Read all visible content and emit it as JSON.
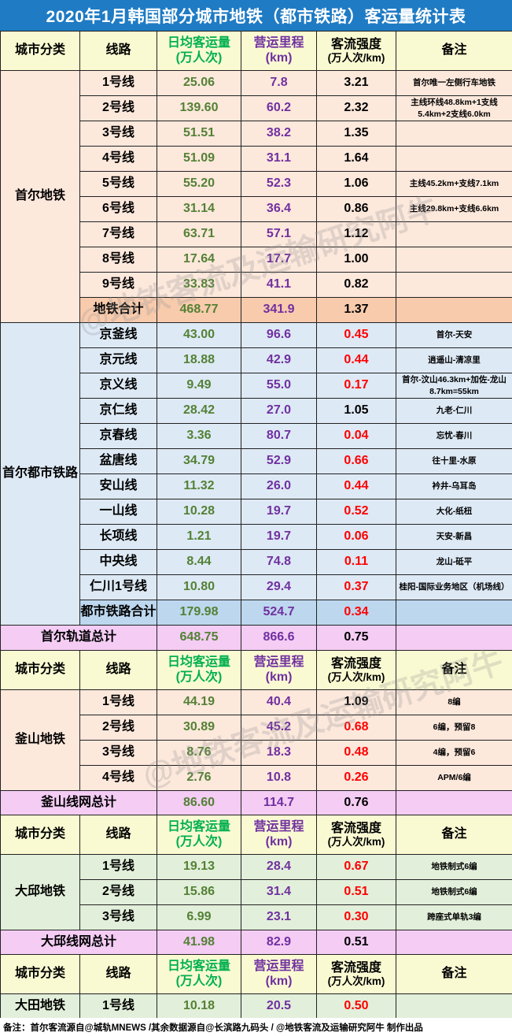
{
  "title": "2020年1月韩国部分城市地铁（都市铁路）客运量统计表",
  "headers": {
    "city": "城市分类",
    "line": "线路",
    "ridership_1": "日均客运量",
    "ridership_2": "(万人次)",
    "length_1": "营运里程",
    "length_2": "(km)",
    "intensity_1": "客流强度",
    "intensity_2": "(万人次/km)",
    "note": "备注"
  },
  "seoul_metro": {
    "city": "首尔地铁",
    "rows": [
      {
        "line": "1号线",
        "ridership": "25.06",
        "length": "7.8",
        "intensity": "3.21",
        "note": "首尔唯一左侧行车地铁"
      },
      {
        "line": "2号线",
        "ridership": "139.60",
        "length": "60.2",
        "intensity": "2.32",
        "note": "主线环线48.8km+1支线5.4km+2支线6.0km"
      },
      {
        "line": "3号线",
        "ridership": "51.51",
        "length": "38.2",
        "intensity": "1.35",
        "note": ""
      },
      {
        "line": "4号线",
        "ridership": "51.09",
        "length": "31.1",
        "intensity": "1.64",
        "note": ""
      },
      {
        "line": "5号线",
        "ridership": "55.20",
        "length": "52.3",
        "intensity": "1.06",
        "note": "主线45.2km+支线7.1km"
      },
      {
        "line": "6号线",
        "ridership": "31.14",
        "length": "36.4",
        "intensity": "0.86",
        "note": "主线29.8km+支线6.6km"
      },
      {
        "line": "7号线",
        "ridership": "63.71",
        "length": "57.1",
        "intensity": "1.12",
        "note": ""
      },
      {
        "line": "8号线",
        "ridership": "17.64",
        "length": "17.7",
        "intensity": "1.00",
        "note": ""
      },
      {
        "line": "9号线",
        "ridership": "33.83",
        "length": "41.1",
        "intensity": "0.82",
        "note": ""
      }
    ],
    "sum": {
      "line": "地铁合计",
      "ridership": "468.77",
      "length": "341.9",
      "intensity": "1.37",
      "note": ""
    }
  },
  "seoul_metro_rail": {
    "city": "首尔都市铁路",
    "rows": [
      {
        "line": "京釜线",
        "ridership": "43.00",
        "length": "96.6",
        "intensity": "0.45",
        "note": "首尔-天安"
      },
      {
        "line": "京元线",
        "ridership": "18.88",
        "length": "42.9",
        "intensity": "0.44",
        "note": "逍遥山-清凉里"
      },
      {
        "line": "京义线",
        "ridership": "9.49",
        "length": "55.0",
        "intensity": "0.17",
        "note": "首尔-汶山46.3km+加佐-龙山8.7km=55km"
      },
      {
        "line": "京仁线",
        "ridership": "28.42",
        "length": "27.0",
        "intensity": "1.05",
        "note": "九老-仁川"
      },
      {
        "line": "京春线",
        "ridership": "3.36",
        "length": "80.7",
        "intensity": "0.04",
        "note": "忘忧-春川"
      },
      {
        "line": "盆唐线",
        "ridership": "34.79",
        "length": "52.9",
        "intensity": "0.66",
        "note": "往十里-水原"
      },
      {
        "line": "安山线",
        "ridership": "11.32",
        "length": "26.0",
        "intensity": "0.44",
        "note": "衿井-乌耳岛"
      },
      {
        "line": "一山线",
        "ridership": "10.28",
        "length": "19.7",
        "intensity": "0.52",
        "note": "大化-纸杻"
      },
      {
        "line": "长项线",
        "ridership": "1.21",
        "length": "19.7",
        "intensity": "0.06",
        "note": "天安-新昌"
      },
      {
        "line": "中央线",
        "ridership": "8.44",
        "length": "74.8",
        "intensity": "0.11",
        "note": "龙山-砥平"
      },
      {
        "line": "仁川1号线",
        "ridership": "10.80",
        "length": "29.4",
        "intensity": "0.37",
        "note": "桂阳-国际业务地区（机场线）"
      }
    ],
    "sum": {
      "line": "都市铁路合计",
      "ridership": "179.98",
      "length": "524.7",
      "intensity": "0.34",
      "note": ""
    }
  },
  "seoul_total": {
    "label": "首尔轨道总计",
    "ridership": "648.75",
    "length": "866.6",
    "intensity": "0.75"
  },
  "busan": {
    "city": "釜山地铁",
    "rows": [
      {
        "line": "1号线",
        "ridership": "44.19",
        "length": "40.4",
        "intensity": "1.09",
        "note": "8编"
      },
      {
        "line": "2号线",
        "ridership": "30.89",
        "length": "45.2",
        "intensity": "0.68",
        "note": "6编，预留8"
      },
      {
        "line": "3号线",
        "ridership": "8.76",
        "length": "18.3",
        "intensity": "0.48",
        "note": "4编，预留6"
      },
      {
        "line": "4号线",
        "ridership": "2.76",
        "length": "10.8",
        "intensity": "0.26",
        "note": "APM/6编"
      }
    ]
  },
  "busan_total": {
    "label": "釜山线网总计",
    "ridership": "86.60",
    "length": "114.7",
    "intensity": "0.76"
  },
  "daegu": {
    "city": "大邱地铁",
    "rows": [
      {
        "line": "1号线",
        "ridership": "19.13",
        "length": "28.4",
        "intensity": "0.67",
        "note": "地铁制式6编"
      },
      {
        "line": "2号线",
        "ridership": "15.86",
        "length": "31.4",
        "intensity": "0.51",
        "note": "地铁制式6编"
      },
      {
        "line": "3号线",
        "ridership": "6.99",
        "length": "23.1",
        "intensity": "0.30",
        "note": "跨座式单轨3编"
      }
    ]
  },
  "daegu_total": {
    "label": "大邱线网总计",
    "ridership": "41.98",
    "length": "82.9",
    "intensity": "0.51"
  },
  "daejeon": {
    "city": "大田地铁",
    "rows": [
      {
        "line": "1号线",
        "ridership": "10.18",
        "length": "20.5",
        "intensity": "0.50",
        "note": ""
      }
    ]
  },
  "footer": "备注：首尔客流源自@城轨MNEWS  /其余数据源自@长滨路九码头  / @地铁客流及运输研究阿牛 制作出品",
  "watermark": "@地铁客流及运输研究阿牛",
  "colors": {
    "title_bg": "#1f7bc4",
    "green": "#538135",
    "purple": "#7030a0",
    "red": "#ff0000"
  }
}
